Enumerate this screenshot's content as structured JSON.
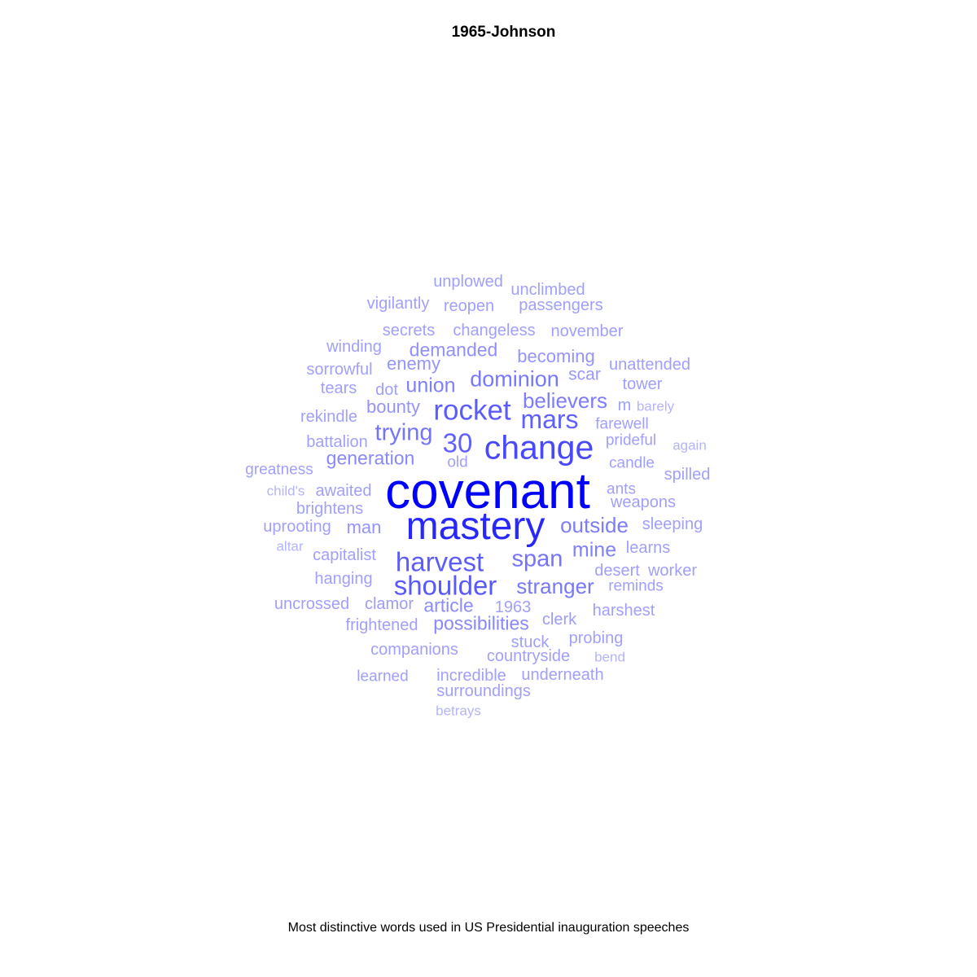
{
  "chart_data": {
    "type": "wordcloud",
    "title": "1965-Johnson",
    "caption": "Most distinctive words used in US Presidential inauguration speeches",
    "colors": {
      "low": "#c8c8fa",
      "high": "#0000ff"
    },
    "words": [
      {
        "text": "covenant",
        "weight": 1.0
      },
      {
        "text": "mastery",
        "weight": 0.8
      },
      {
        "text": "change",
        "weight": 0.64
      },
      {
        "text": "shoulder",
        "weight": 0.56
      },
      {
        "text": "rocket",
        "weight": 0.54
      },
      {
        "text": "harvest",
        "weight": 0.54
      },
      {
        "text": "mars",
        "weight": 0.52
      },
      {
        "text": "30",
        "weight": 0.52
      },
      {
        "text": "trying",
        "weight": 0.42
      },
      {
        "text": "span",
        "weight": 0.42
      },
      {
        "text": "dominion",
        "weight": 0.4
      },
      {
        "text": "stranger",
        "weight": 0.4
      },
      {
        "text": "believers",
        "weight": 0.38
      },
      {
        "text": "outside",
        "weight": 0.38
      },
      {
        "text": "union",
        "weight": 0.36
      },
      {
        "text": "mine",
        "weight": 0.36
      },
      {
        "text": "generation",
        "weight": 0.32
      },
      {
        "text": "possibilities",
        "weight": 0.32
      },
      {
        "text": "article",
        "weight": 0.3
      },
      {
        "text": "demanded",
        "weight": 0.28
      },
      {
        "text": "becoming",
        "weight": 0.26
      },
      {
        "text": "bounty",
        "weight": 0.26
      },
      {
        "text": "enemy",
        "weight": 0.26
      },
      {
        "text": "man",
        "weight": 0.26
      },
      {
        "text": "scar",
        "weight": 0.24
      },
      {
        "text": "clamor",
        "weight": 0.22
      },
      {
        "text": "clerk",
        "weight": 0.22
      },
      {
        "text": "1963",
        "weight": 0.2
      },
      {
        "text": "old",
        "weight": 0.2
      },
      {
        "text": "ants",
        "weight": 0.2
      },
      {
        "text": "weapons",
        "weight": 0.2
      },
      {
        "text": "farewell",
        "weight": 0.2
      },
      {
        "text": "prideful",
        "weight": 0.2
      },
      {
        "text": "candle",
        "weight": 0.2
      },
      {
        "text": "learns",
        "weight": 0.2
      },
      {
        "text": "desert",
        "weight": 0.2
      },
      {
        "text": "worker",
        "weight": 0.2
      },
      {
        "text": "reminds",
        "weight": 0.2
      },
      {
        "text": "harshest",
        "weight": 0.2
      },
      {
        "text": "probing",
        "weight": 0.2
      },
      {
        "text": "stuck",
        "weight": 0.2
      },
      {
        "text": "countryside",
        "weight": 0.2
      },
      {
        "text": "underneath",
        "weight": 0.2
      },
      {
        "text": "incredible",
        "weight": 0.2
      },
      {
        "text": "surroundings",
        "weight": 0.2
      },
      {
        "text": "companions",
        "weight": 0.2
      },
      {
        "text": "frightened",
        "weight": 0.2
      },
      {
        "text": "uncrossed",
        "weight": 0.2
      },
      {
        "text": "hanging",
        "weight": 0.2
      },
      {
        "text": "capitalist",
        "weight": 0.2
      },
      {
        "text": "uprooting",
        "weight": 0.2
      },
      {
        "text": "brightens",
        "weight": 0.2
      },
      {
        "text": "awaited",
        "weight": 0.2
      },
      {
        "text": "battalion",
        "weight": 0.2
      },
      {
        "text": "rekindle",
        "weight": 0.2
      },
      {
        "text": "tears",
        "weight": 0.2
      },
      {
        "text": "dot",
        "weight": 0.2
      },
      {
        "text": "sorrowful",
        "weight": 0.2
      },
      {
        "text": "winding",
        "weight": 0.2
      },
      {
        "text": "secrets",
        "weight": 0.2
      },
      {
        "text": "changeless",
        "weight": 0.2
      },
      {
        "text": "november",
        "weight": 0.2
      },
      {
        "text": "vigilantly",
        "weight": 0.2
      },
      {
        "text": "reopen",
        "weight": 0.2
      },
      {
        "text": "passengers",
        "weight": 0.2
      },
      {
        "text": "unplowed",
        "weight": 0.2
      },
      {
        "text": "unclimbed",
        "weight": 0.2
      },
      {
        "text": "unattended",
        "weight": 0.2
      },
      {
        "text": "tower",
        "weight": 0.2
      },
      {
        "text": "m",
        "weight": 0.2
      },
      {
        "text": "spilled",
        "weight": 0.2
      },
      {
        "text": "sleeping",
        "weight": 0.2
      },
      {
        "text": "greatness",
        "weight": 0.2
      },
      {
        "text": "child's",
        "weight": 0.1
      },
      {
        "text": "altar",
        "weight": 0.1
      },
      {
        "text": "barely",
        "weight": 0.1
      },
      {
        "text": "again",
        "weight": 0.1
      },
      {
        "text": "bend",
        "weight": 0.1
      },
      {
        "text": "betrays",
        "weight": 0.1
      },
      {
        "text": "learned",
        "weight": 0.2
      }
    ]
  }
}
